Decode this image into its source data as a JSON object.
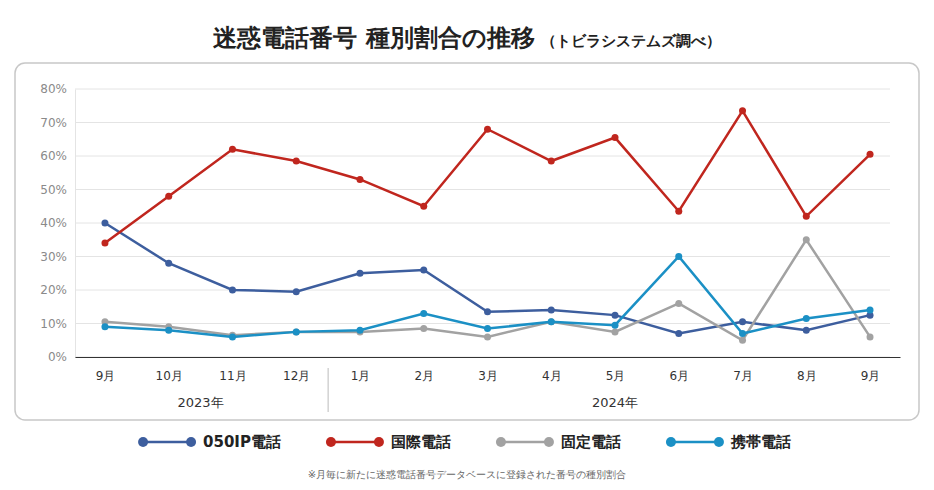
{
  "chart_data": {
    "type": "line",
    "title": "迷惑電話番号 種別割合の推移",
    "subtitle": "（トビラシステムズ調べ）",
    "footnote": "※月毎に新たに迷惑電話番号データベースに登録された番号の種別割合",
    "categories": [
      "9月",
      "10月",
      "11月",
      "12月",
      "1月",
      "2月",
      "3月",
      "4月",
      "5月",
      "6月",
      "7月",
      "8月",
      "9月"
    ],
    "year_groups": [
      {
        "label": "2023年",
        "from": 0,
        "to": 3
      },
      {
        "label": "2024年",
        "from": 4,
        "to": 12
      }
    ],
    "series": [
      {
        "name": "050IP電話",
        "color": "#3d5e9e",
        "values": [
          40,
          28,
          20,
          19.5,
          25,
          26,
          13.5,
          14,
          12.5,
          7,
          10.5,
          8,
          12.5
        ]
      },
      {
        "name": "国際電話",
        "color": "#c0261e",
        "values": [
          34,
          48,
          62,
          58.5,
          53,
          45,
          68,
          58.5,
          65.5,
          43.5,
          73.5,
          42,
          60.5
        ]
      },
      {
        "name": "固定電話",
        "color": "#a2a2a2",
        "values": [
          10.5,
          9,
          6.5,
          7.5,
          7.5,
          8.5,
          6,
          10.5,
          7.5,
          16,
          5,
          35,
          6
        ]
      },
      {
        "name": "携帯電話",
        "color": "#1b90c5",
        "values": [
          9,
          8,
          6,
          7.5,
          8,
          13,
          8.5,
          10.5,
          9.5,
          30,
          7,
          11.5,
          14
        ]
      }
    ],
    "ylim": [
      0,
      80
    ],
    "yticks": [
      {
        "value": 0,
        "label": "0%"
      },
      {
        "value": 10,
        "label": "10%"
      },
      {
        "value": 20,
        "label": "20%"
      },
      {
        "value": 30,
        "label": "30%"
      },
      {
        "value": 40,
        "label": "40%"
      },
      {
        "value": 50,
        "label": "50%"
      },
      {
        "value": 60,
        "label": "60%"
      },
      {
        "value": 70,
        "label": "70%"
      },
      {
        "value": 80,
        "label": "80%"
      }
    ],
    "grid": true,
    "marker": "circle",
    "legend": "bottom"
  }
}
